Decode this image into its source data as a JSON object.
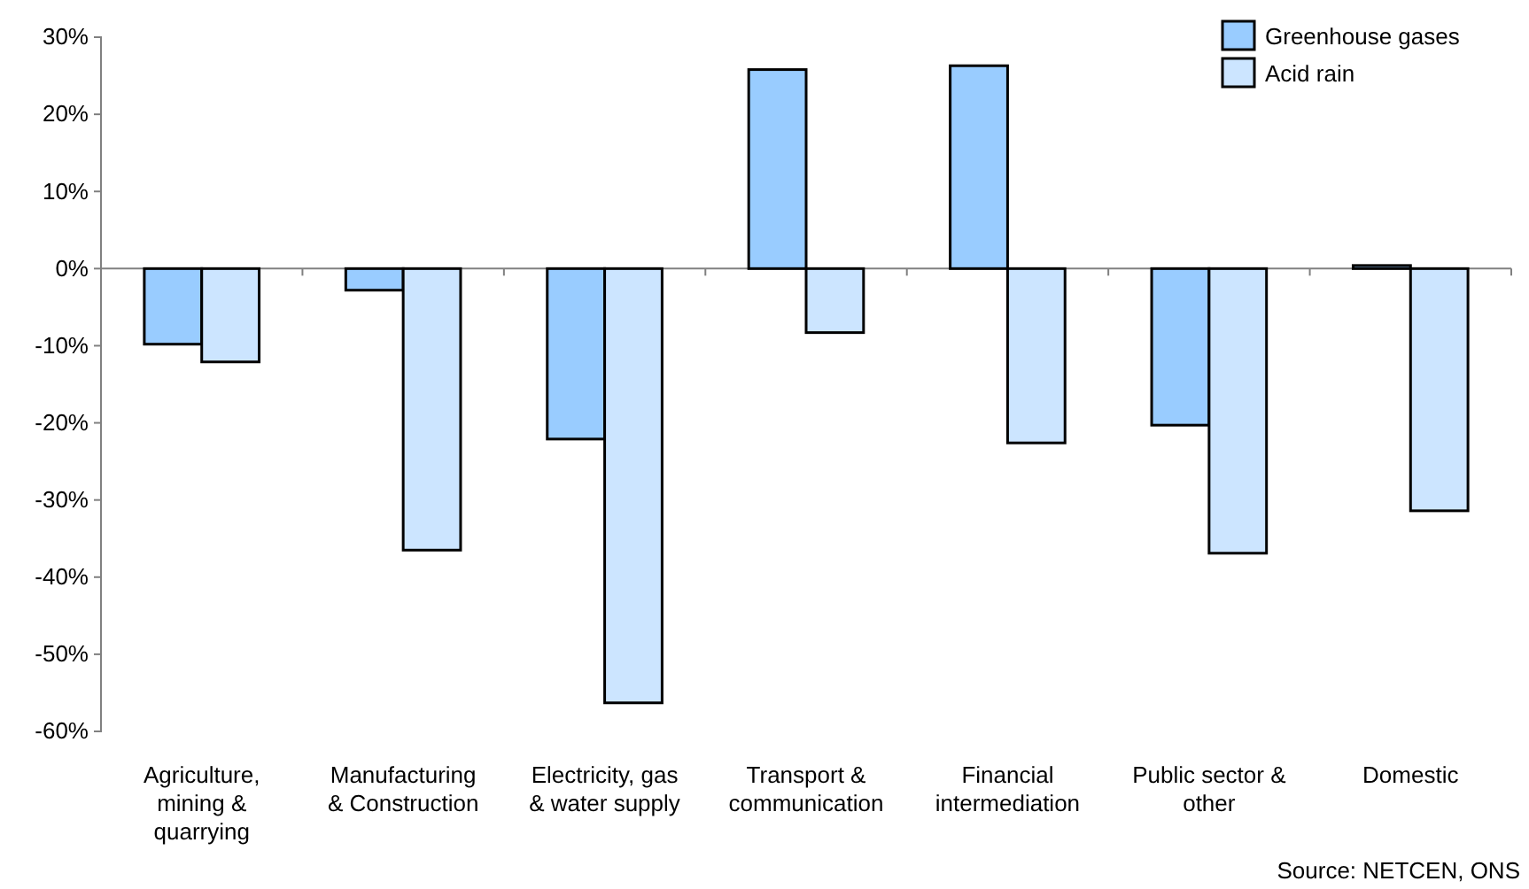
{
  "chart_data": {
    "type": "bar",
    "categories": [
      "Agriculture,\nmining &\nquarrying",
      "Manufacturing\n& Construction",
      "Electricity, gas\n& water supply",
      "Transport &\ncommunication",
      "Financial\nintermediation",
      "Public sector &\nother",
      "Domestic"
    ],
    "series": [
      {
        "name": "Greenhouse gases",
        "color": "#99ccff",
        "values": [
          -9.8,
          -2.8,
          -22.1,
          25.8,
          26.3,
          -20.3,
          0.4
        ]
      },
      {
        "name": "Acid rain",
        "color": "#cce5ff",
        "values": [
          -12.1,
          -36.5,
          -56.3,
          -8.3,
          -22.6,
          -36.9,
          -31.4
        ]
      }
    ],
    "ylim": [
      -60,
      30
    ],
    "yticks": [
      {
        "value": -60,
        "label": "-60%"
      },
      {
        "value": -50,
        "label": "-50%"
      },
      {
        "value": -40,
        "label": "-40%"
      },
      {
        "value": -30,
        "label": "-30%"
      },
      {
        "value": -20,
        "label": "-20%"
      },
      {
        "value": -10,
        "label": "-10%"
      },
      {
        "value": 0,
        "label": "0%"
      },
      {
        "value": 10,
        "label": "10%"
      },
      {
        "value": 20,
        "label": "20%"
      },
      {
        "value": 30,
        "label": "30%"
      }
    ],
    "legend": "top right",
    "annotations": [
      "Source: NETCEN, ONS"
    ]
  }
}
